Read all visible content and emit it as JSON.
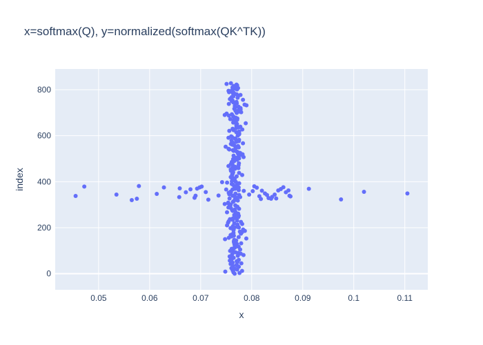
{
  "chart_data": {
    "type": "scatter",
    "title": "x=softmax(Q), y=normalized(softmax(QK^TK))",
    "xlabel": "x",
    "ylabel": "index",
    "xlim": [
      0.0415,
      0.1145
    ],
    "ylim": [
      -70,
      890
    ],
    "grid": true,
    "x_ticks": [
      0.05,
      0.06,
      0.07,
      0.08,
      0.09,
      0.1,
      0.11
    ],
    "x_tick_labels": [
      "0.05",
      "0.06",
      "0.07",
      "0.08",
      "0.09",
      "0.1",
      "0.11"
    ],
    "y_ticks": [
      0,
      200,
      400,
      600,
      800
    ],
    "y_tick_labels": [
      "0",
      "200",
      "400",
      "600",
      "800"
    ],
    "colors": {
      "marker": "#636efa",
      "plot_bg": "#e5ecf6",
      "grid": "#ffffff",
      "text": "#2a3f5f"
    },
    "core_cluster": {
      "index_start": 0,
      "index_end": 830,
      "x_center": 0.0768,
      "x_min": 0.0745,
      "x_max": 0.079
    },
    "outlier_points": [
      {
        "x": 0.0455,
        "y": 338
      },
      {
        "x": 0.0472,
        "y": 379
      },
      {
        "x": 0.0535,
        "y": 344
      },
      {
        "x": 0.0565,
        "y": 320
      },
      {
        "x": 0.0575,
        "y": 326
      },
      {
        "x": 0.0579,
        "y": 381
      },
      {
        "x": 0.0614,
        "y": 347
      },
      {
        "x": 0.0628,
        "y": 375
      },
      {
        "x": 0.0658,
        "y": 333
      },
      {
        "x": 0.0659,
        "y": 371
      },
      {
        "x": 0.0671,
        "y": 354
      },
      {
        "x": 0.068,
        "y": 367
      },
      {
        "x": 0.0688,
        "y": 330
      },
      {
        "x": 0.069,
        "y": 339
      },
      {
        "x": 0.0693,
        "y": 370
      },
      {
        "x": 0.0698,
        "y": 375
      },
      {
        "x": 0.0702,
        "y": 379
      },
      {
        "x": 0.071,
        "y": 355
      },
      {
        "x": 0.0715,
        "y": 322
      },
      {
        "x": 0.0735,
        "y": 340
      },
      {
        "x": 0.0742,
        "y": 398
      },
      {
        "x": 0.075,
        "y": 366
      },
      {
        "x": 0.0755,
        "y": 352
      },
      {
        "x": 0.0795,
        "y": 344
      },
      {
        "x": 0.0802,
        "y": 359
      },
      {
        "x": 0.0805,
        "y": 380
      },
      {
        "x": 0.081,
        "y": 374
      },
      {
        "x": 0.0815,
        "y": 337
      },
      {
        "x": 0.0818,
        "y": 325
      },
      {
        "x": 0.082,
        "y": 361
      },
      {
        "x": 0.0826,
        "y": 349
      },
      {
        "x": 0.083,
        "y": 342
      },
      {
        "x": 0.0833,
        "y": 329
      },
      {
        "x": 0.0838,
        "y": 326
      },
      {
        "x": 0.084,
        "y": 334
      },
      {
        "x": 0.0845,
        "y": 344
      },
      {
        "x": 0.0848,
        "y": 327
      },
      {
        "x": 0.0852,
        "y": 362
      },
      {
        "x": 0.0857,
        "y": 368
      },
      {
        "x": 0.0862,
        "y": 376
      },
      {
        "x": 0.0867,
        "y": 354
      },
      {
        "x": 0.0872,
        "y": 362
      },
      {
        "x": 0.0874,
        "y": 339
      },
      {
        "x": 0.0876,
        "y": 336
      },
      {
        "x": 0.0912,
        "y": 369
      },
      {
        "x": 0.0975,
        "y": 323
      },
      {
        "x": 0.102,
        "y": 356
      },
      {
        "x": 0.1105,
        "y": 349
      }
    ]
  }
}
